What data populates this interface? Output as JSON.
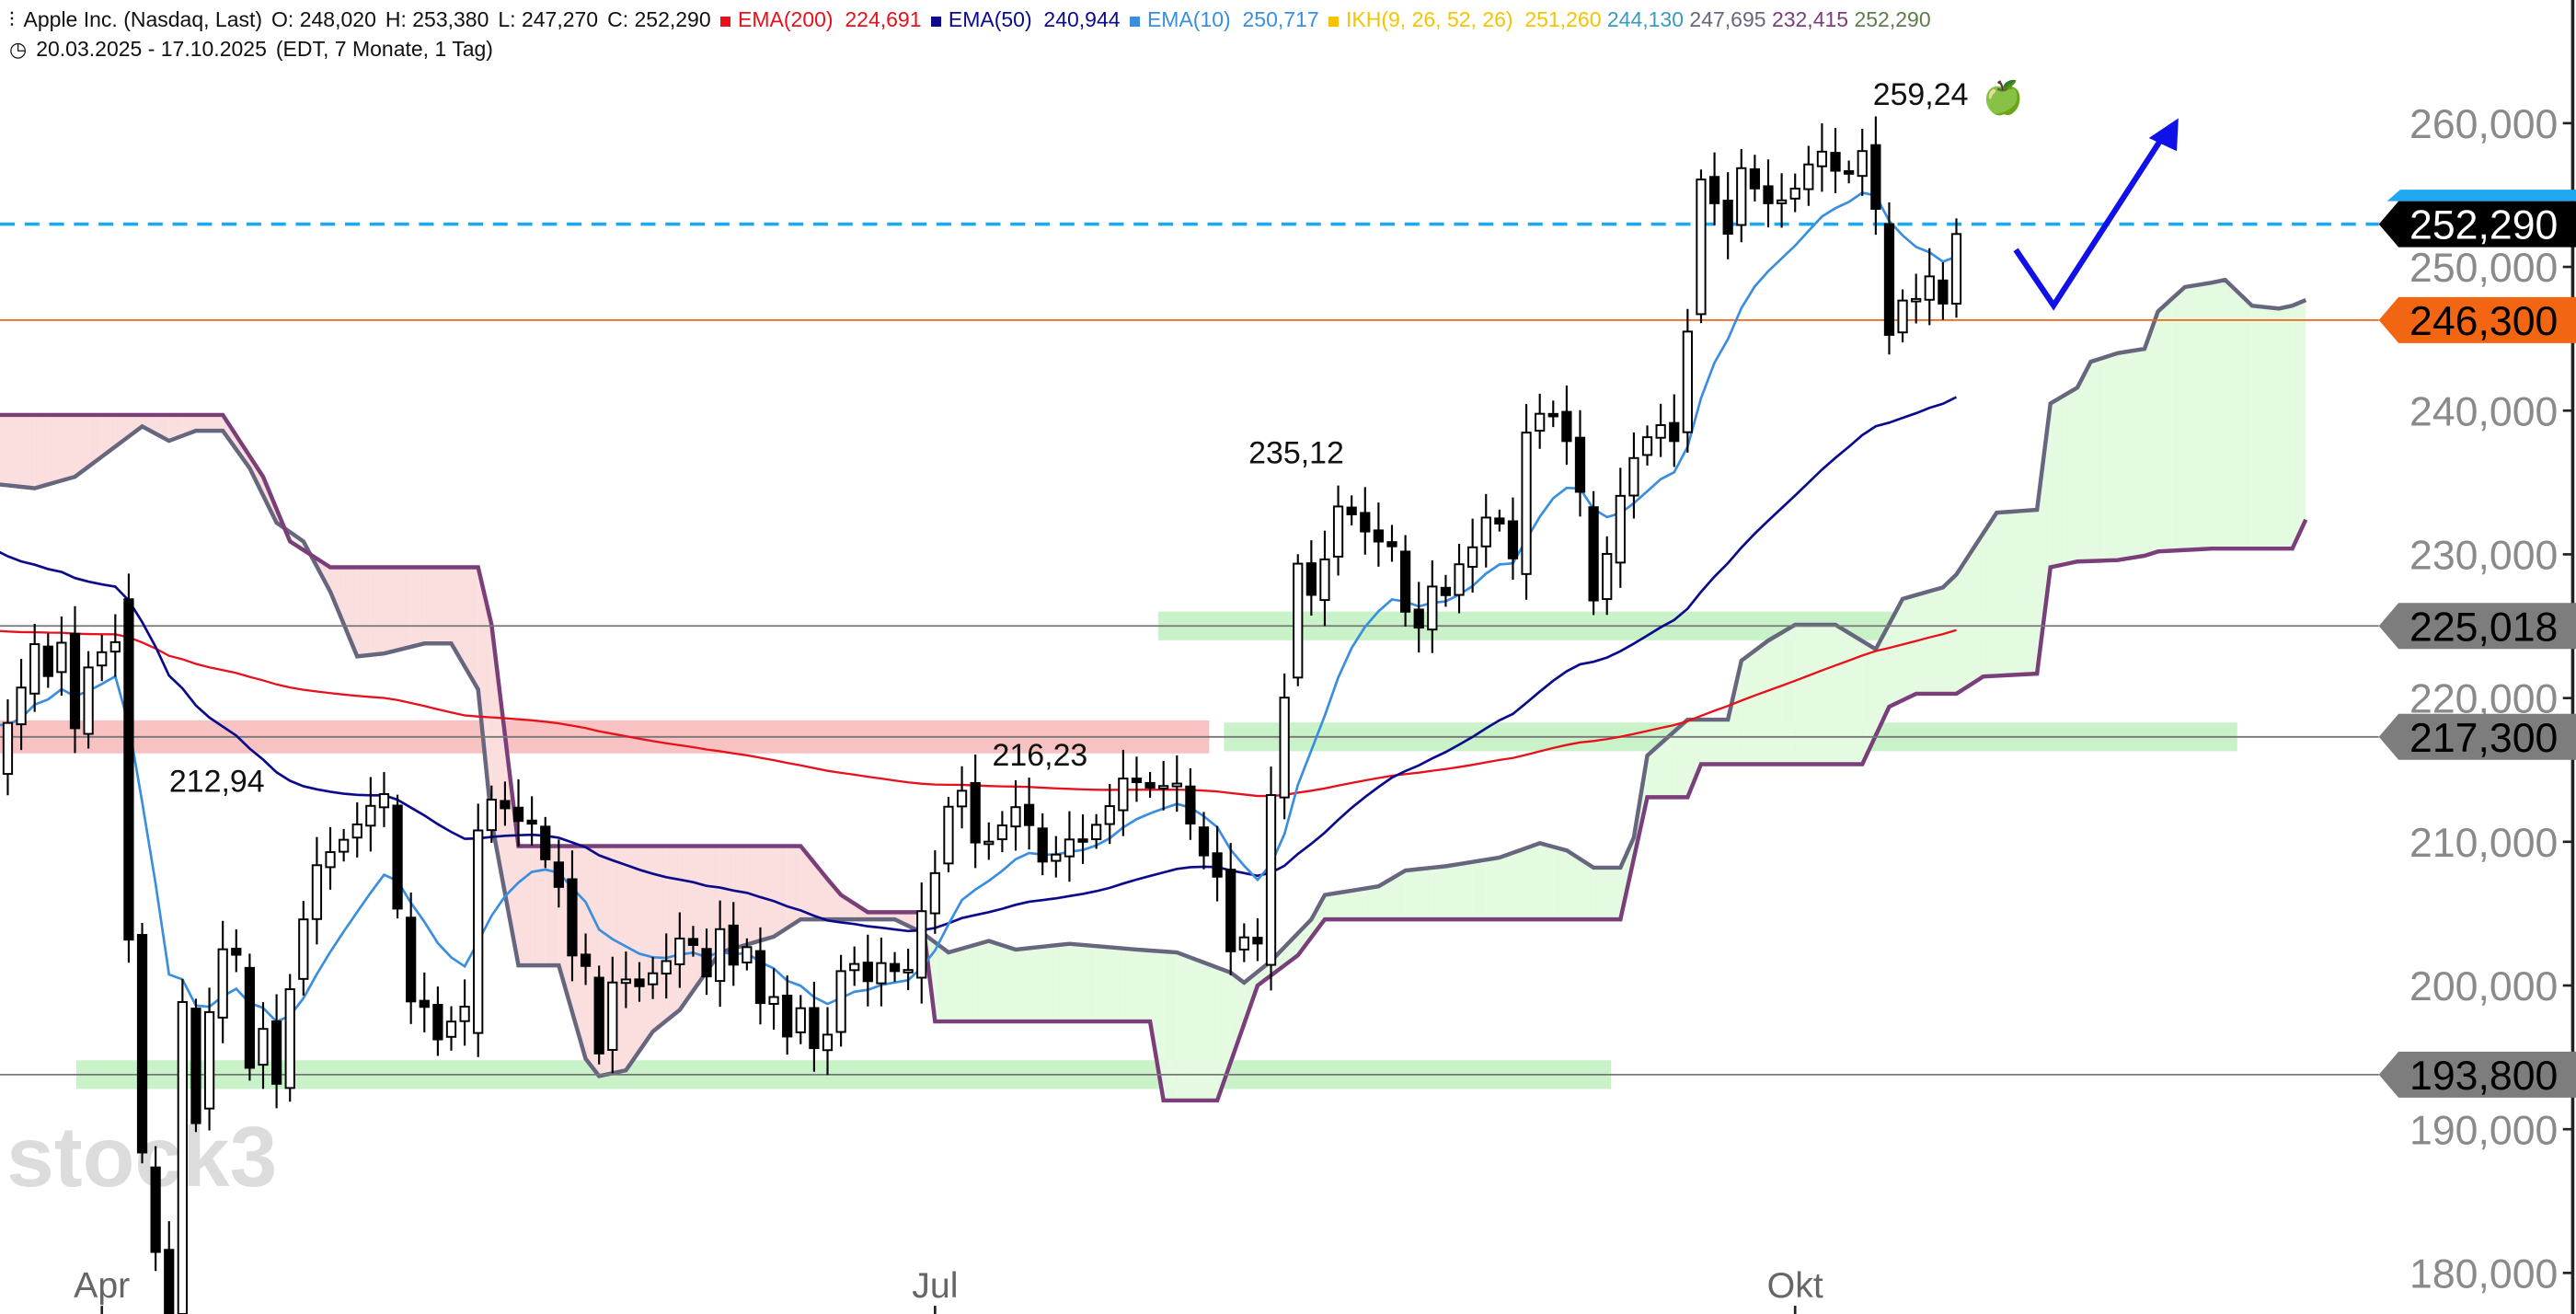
{
  "header": {
    "title": "Apple Inc. (Nasdaq, Last)",
    "open": "O: 248,020",
    "high": "H: 253,380",
    "low": "L: 247,270",
    "close": "C: 252,290",
    "ema200_label": "EMA(200)",
    "ema200_value": "224,691",
    "ema50_label": "EMA(50)",
    "ema50_value": "240,944",
    "ema10_label": "EMA(10)",
    "ema10_value": "250,717",
    "ikh_label": "IKH(9, 26, 52, 26)",
    "ikh_tenkan": "251,260",
    "ikh_kijun": "244,130",
    "ikh_span_a": "247,695",
    "ikh_span_b": "232,415",
    "ikh_chikou": "252,290",
    "range": "20.03.2025 - 17.10.2025",
    "range_info": "(EDT, 7 Monate, 1 Tag)",
    "chart-icon": "candles-icon",
    "clock-icon": "clock-icon"
  },
  "colors": {
    "ema200": "#e8101a",
    "ema50": "#0a0a8c",
    "ema10": "#3a8ee0",
    "ikh": "#f5c400",
    "tenkan": "#3a9bbd",
    "span_a": "#66667e",
    "span_b": "#7a3e7a",
    "chikou": "#5e7d4a",
    "last_price": "#1fa8f0",
    "support_orange": "#f26513",
    "zone_green": "#9ee89a",
    "zone_red": "#f28f8f",
    "arrow": "#1010e8"
  },
  "chart_data": {
    "type": "candlestick",
    "title": "Apple Inc. (Nasdaq, Last)",
    "ylabel": "",
    "xlabel": "",
    "ylim": [
      176,
      266
    ],
    "y_ticks": [
      {
        "value": 260,
        "label": "260,000"
      },
      {
        "value": 250,
        "label": "250,000"
      },
      {
        "value": 240,
        "label": "240,000"
      },
      {
        "value": 230,
        "label": "230,000"
      },
      {
        "value": 220,
        "label": "220,000"
      },
      {
        "value": 210,
        "label": "210,000"
      },
      {
        "value": 200,
        "label": "200,000"
      },
      {
        "value": 190,
        "label": "190,000"
      },
      {
        "value": 180,
        "label": "180,000"
      }
    ],
    "x_ticks": [
      {
        "index": 8,
        "label": "Apr"
      },
      {
        "index": 70,
        "label": "Jul"
      },
      {
        "index": 134,
        "label": "Okt"
      }
    ],
    "closes": [
      214.1,
      218.27,
      220.73,
      223.75,
      221.53,
      223.85,
      217.9,
      222.13,
      223.19,
      223.89,
      203.19,
      188.38,
      181.46,
      172.42,
      198.85,
      190.42,
      198.15,
      202.52,
      202.14,
      194.27,
      196.98,
      193.16,
      199.74,
      204.6,
      208.37,
      209.28,
      210.14,
      211.21,
      212.5,
      213.32,
      205.35,
      198.89,
      198.51,
      196.25,
      197.49,
      198.53,
      210.79,
      212.93,
      212.33,
      211.45,
      211.26,
      208.78,
      206.86,
      202.09,
      201.36,
      195.27,
      200.21,
      200.42,
      199.95,
      200.85,
      201.7,
      203.27,
      202.82,
      200.63,
      203.92,
      201.45,
      202.67,
      198.78,
      199.2,
      196.45,
      198.42,
      195.64,
      196.58,
      201.0,
      201.5,
      200.3,
      201.56,
      201.0,
      201.08,
      205.17,
      207.82,
      212.44,
      213.55,
      209.95,
      210.01,
      211.14,
      212.41,
      211.16,
      208.62,
      209.11,
      210.16,
      210.02,
      211.18,
      212.48,
      214.4,
      214.15,
      213.76,
      213.88,
      214.05,
      211.27,
      209.05,
      207.57,
      202.38,
      203.35,
      202.92,
      213.25,
      220.03,
      229.35,
      227.18,
      229.65,
      233.33,
      232.78,
      231.59,
      230.89,
      230.56,
      226.01,
      224.9,
      227.76,
      227.16,
      229.31,
      230.49,
      232.56,
      232.14,
      229.72,
      238.47,
      239.78,
      239.69,
      237.88,
      234.35,
      226.79,
      230.03,
      234.07,
      236.7,
      238.15,
      238.99,
      237.88,
      245.5,
      256.08,
      254.43,
      252.31,
      256.87,
      255.46,
      254.43,
      254.63,
      255.45,
      257.13,
      258.02,
      256.69,
      256.48,
      258.06,
      254.04,
      245.27,
      247.66,
      247.77,
      249.34,
      247.45,
      252.29
    ],
    "ema_seeds": {
      "ema10": 219.0,
      "ema50": 231.0,
      "ema200": 224.8
    },
    "ichimoku_span_a": [
      [
        0,
        234.9
      ],
      [
        3,
        234.6
      ],
      [
        6,
        235.4
      ],
      [
        9,
        237.5
      ],
      [
        11,
        238.9
      ],
      [
        13,
        237.9
      ],
      [
        15,
        238.6
      ],
      [
        17,
        238.6
      ],
      [
        19,
        236.0
      ],
      [
        21,
        232.2
      ],
      [
        23,
        230.9
      ],
      [
        25,
        227.4
      ],
      [
        27,
        222.9
      ],
      [
        29,
        223.1
      ],
      [
        32,
        223.8
      ],
      [
        34,
        223.8
      ],
      [
        36,
        220.6
      ],
      [
        37,
        211.4
      ],
      [
        39,
        201.4
      ],
      [
        42,
        201.4
      ],
      [
        44,
        194.9
      ],
      [
        45,
        193.7
      ],
      [
        47,
        194.1
      ],
      [
        49,
        196.8
      ],
      [
        51,
        198.3
      ],
      [
        54,
        202.3
      ],
      [
        58,
        203.4
      ],
      [
        60,
        204.6
      ],
      [
        67,
        204.6
      ],
      [
        69,
        203.7
      ],
      [
        71,
        202.3
      ],
      [
        74,
        203.1
      ],
      [
        76,
        202.5
      ],
      [
        80,
        202.9
      ],
      [
        85,
        202.5
      ],
      [
        88,
        202.3
      ],
      [
        92,
        200.9
      ],
      [
        93,
        200.2
      ],
      [
        95,
        201.7
      ],
      [
        98,
        204.6
      ],
      [
        99,
        206.3
      ],
      [
        103,
        206.9
      ],
      [
        105,
        208.0
      ],
      [
        108,
        208.3
      ],
      [
        112,
        208.9
      ],
      [
        115,
        209.9
      ],
      [
        117,
        209.4
      ],
      [
        119,
        208.2
      ],
      [
        121,
        208.2
      ],
      [
        122,
        210.3
      ],
      [
        123,
        216.0
      ],
      [
        126,
        218.5
      ],
      [
        129,
        218.5
      ],
      [
        130,
        222.6
      ],
      [
        132,
        224.0
      ],
      [
        134,
        225.1
      ],
      [
        137,
        225.1
      ],
      [
        140,
        223.4
      ],
      [
        142,
        226.9
      ],
      [
        145,
        227.7
      ],
      [
        146,
        228.6
      ],
      [
        149,
        232.9
      ],
      [
        152,
        233.1
      ],
      [
        153,
        240.5
      ],
      [
        155,
        241.6
      ],
      [
        156,
        243.4
      ],
      [
        158,
        244.0
      ],
      [
        160,
        244.3
      ],
      [
        161,
        246.9
      ],
      [
        163,
        248.6
      ],
      [
        165,
        248.9
      ],
      [
        166,
        249.1
      ],
      [
        168,
        247.3
      ],
      [
        170,
        247.1
      ],
      [
        171,
        247.3
      ],
      [
        172,
        247.695
      ]
    ],
    "ichimoku_span_b": [
      [
        0,
        239.7
      ],
      [
        17,
        239.7
      ],
      [
        20,
        235.4
      ],
      [
        22,
        230.9
      ],
      [
        25,
        229.1
      ],
      [
        36,
        229.1
      ],
      [
        37,
        225.1
      ],
      [
        39,
        209.7
      ],
      [
        60,
        209.7
      ],
      [
        62,
        207.4
      ],
      [
        63,
        206.3
      ],
      [
        65,
        205.1
      ],
      [
        69,
        205.1
      ],
      [
        70,
        197.5
      ],
      [
        86,
        197.5
      ],
      [
        87,
        192.0
      ],
      [
        91,
        192.0
      ],
      [
        94,
        200.0
      ],
      [
        97,
        202.1
      ],
      [
        99,
        204.6
      ],
      [
        121,
        204.6
      ],
      [
        123,
        213.1
      ],
      [
        126,
        213.1
      ],
      [
        127,
        215.4
      ],
      [
        139,
        215.4
      ],
      [
        141,
        219.4
      ],
      [
        143,
        220.3
      ],
      [
        146,
        220.3
      ],
      [
        148,
        221.5
      ],
      [
        152,
        221.7
      ],
      [
        153,
        229.1
      ],
      [
        155,
        229.5
      ],
      [
        158,
        229.6
      ],
      [
        160,
        229.9
      ],
      [
        161,
        230.2
      ],
      [
        165,
        230.4
      ],
      [
        171,
        230.4
      ],
      [
        172,
        232.415
      ]
    ],
    "zones": [
      {
        "kind": "resistance",
        "price": 217.3,
        "from_index": -1,
        "to_index": 90.4
      },
      {
        "kind": "support",
        "price": 225.018,
        "from_index": 86.6,
        "to_index": 149.9
      },
      {
        "kind": "support",
        "price": 217.3,
        "from_index": 91.5,
        "to_index": 166.9
      },
      {
        "kind": "support",
        "price": 193.8,
        "from_index": 6.1,
        "to_index": 120.3
      }
    ],
    "levels": [
      {
        "price": 252.29,
        "label": "252,290",
        "kind": "last"
      },
      {
        "price": 246.3,
        "label": "246,300",
        "kind": "orange"
      },
      {
        "price": 225.018,
        "label": "225,018",
        "kind": "grey"
      },
      {
        "price": 217.3,
        "label": "217,300",
        "kind": "grey"
      },
      {
        "price": 193.8,
        "label": "193,800",
        "kind": "grey"
      }
    ],
    "annotations": {
      "high_oct": "259,24",
      "high_aug": "235,12",
      "high_jul": "216,23",
      "high_may": "212,94",
      "apple_emoji": "🍏"
    }
  },
  "watermark": "stock3"
}
